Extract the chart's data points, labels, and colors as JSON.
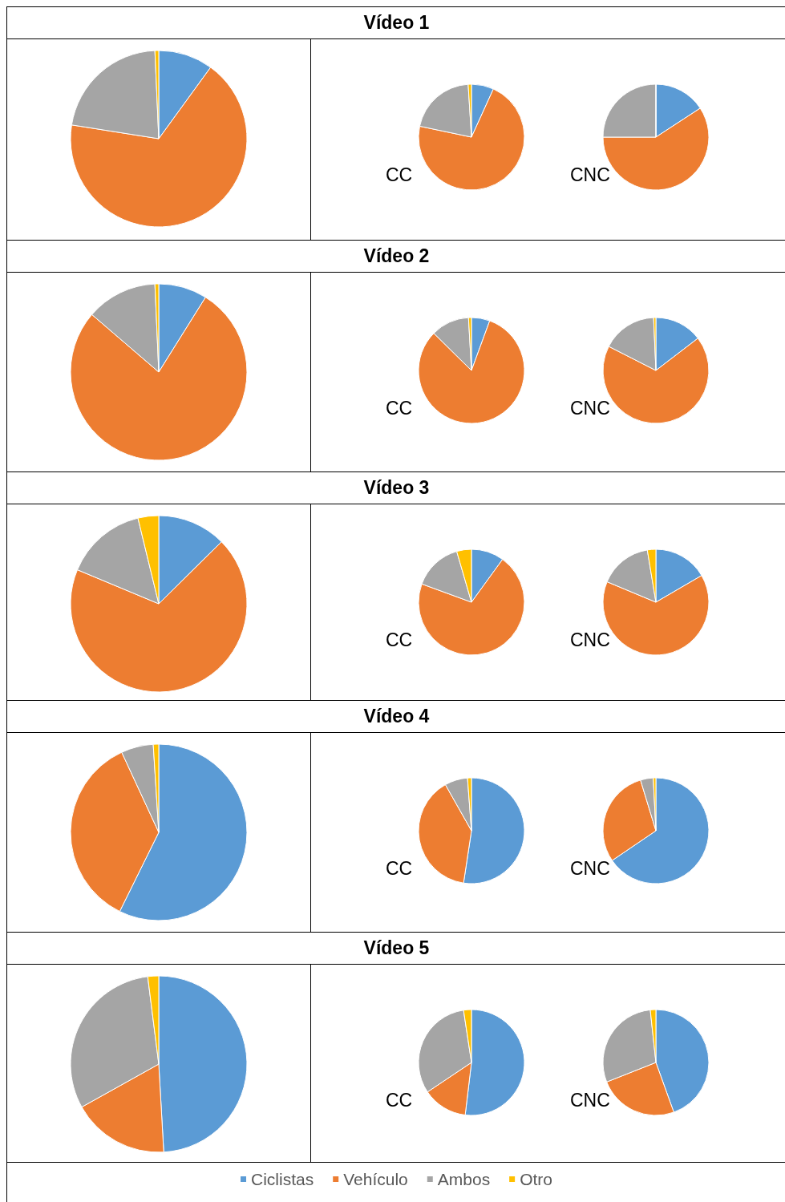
{
  "chart_data": [
    {
      "type": "pie",
      "title": "Vídeo 1",
      "categories": [
        null,
        null,
        null,
        null
      ],
      "values": [
        10,
        67.5,
        21.8,
        0.7
      ],
      "colors": [
        "#5b9bd5",
        "#ed7d31",
        "#a5a5a5",
        "#ffc000"
      ]
    },
    {
      "type": "pie",
      "title": "CC",
      "categories": [
        null,
        null,
        null,
        null
      ],
      "values": [
        6.8,
        71.5,
        20.7,
        1
      ],
      "colors": [
        "#5b9bd5",
        "#ed7d31",
        "#a5a5a5",
        "#ffc000"
      ]
    },
    {
      "type": "pie",
      "title": "CNC",
      "categories": [
        null,
        null,
        null,
        null
      ],
      "values": [
        15.8,
        59.2,
        25,
        0
      ],
      "colors": [
        "#5b9bd5",
        "#ed7d31",
        "#a5a5a5",
        "#ffc000"
      ]
    },
    {
      "type": "pie",
      "title": "Vídeo 2",
      "categories": [
        null,
        null,
        null,
        null
      ],
      "values": [
        8.9,
        77.4,
        13,
        0.7
      ],
      "colors": [
        "#5b9bd5",
        "#ed7d31",
        "#a5a5a5",
        "#ffc000"
      ]
    },
    {
      "type": "pie",
      "title": "CC",
      "categories": [
        null,
        null,
        null,
        null
      ],
      "values": [
        5.6,
        81.8,
        11.7,
        0.9
      ],
      "colors": [
        "#5b9bd5",
        "#ed7d31",
        "#a5a5a5",
        "#ffc000"
      ]
    },
    {
      "type": "pie",
      "title": "CNC",
      "categories": [
        null,
        null,
        null,
        null
      ],
      "values": [
        14.6,
        67.9,
        16.8,
        0.7
      ],
      "colors": [
        "#5b9bd5",
        "#ed7d31",
        "#a5a5a5",
        "#ffc000"
      ]
    },
    {
      "type": "pie",
      "title": "Vídeo 3",
      "categories": [
        null,
        null,
        null,
        null
      ],
      "values": [
        12.6,
        68.7,
        14.9,
        3.8
      ],
      "colors": [
        "#5b9bd5",
        "#ed7d31",
        "#a5a5a5",
        "#ffc000"
      ]
    },
    {
      "type": "pie",
      "title": "CC",
      "categories": [
        null,
        null,
        null,
        null
      ],
      "values": [
        10,
        70.6,
        14.9,
        4.5
      ],
      "colors": [
        "#5b9bd5",
        "#ed7d31",
        "#a5a5a5",
        "#ffc000"
      ]
    },
    {
      "type": "pie",
      "title": "CNC",
      "categories": [
        null,
        null,
        null,
        null
      ],
      "values": [
        16.6,
        64.7,
        16.1,
        2.6
      ],
      "colors": [
        "#5b9bd5",
        "#ed7d31",
        "#a5a5a5",
        "#ffc000"
      ]
    },
    {
      "type": "pie",
      "title": "Vídeo 4",
      "categories": [
        null,
        null,
        null,
        null
      ],
      "values": [
        57.3,
        35.8,
        5.9,
        1
      ],
      "colors": [
        "#5b9bd5",
        "#ed7d31",
        "#a5a5a5",
        "#ffc000"
      ]
    },
    {
      "type": "pie",
      "title": "CC",
      "categories": [
        null,
        null,
        null,
        null
      ],
      "values": [
        52.4,
        39.4,
        7,
        1.2
      ],
      "colors": [
        "#5b9bd5",
        "#ed7d31",
        "#a5a5a5",
        "#ffc000"
      ]
    },
    {
      "type": "pie",
      "title": "CNC",
      "categories": [
        null,
        null,
        null,
        null
      ],
      "values": [
        65.5,
        29.8,
        3.9,
        0.8
      ],
      "colors": [
        "#5b9bd5",
        "#ed7d31",
        "#a5a5a5",
        "#ffc000"
      ]
    },
    {
      "type": "pie",
      "title": "Vídeo 5",
      "categories": [
        null,
        null,
        null,
        null
      ],
      "values": [
        49.1,
        17.8,
        31.1,
        2
      ],
      "colors": [
        "#5b9bd5",
        "#ed7d31",
        "#a5a5a5",
        "#ffc000"
      ]
    },
    {
      "type": "pie",
      "title": "CC",
      "categories": [
        null,
        null,
        null,
        null
      ],
      "values": [
        51.9,
        13.7,
        32,
        2.4
      ],
      "colors": [
        "#5b9bd5",
        "#ed7d31",
        "#a5a5a5",
        "#ffc000"
      ]
    },
    {
      "type": "pie",
      "title": "CNC",
      "categories": [
        "Ciclistas",
        "Vehículo",
        "Ambos",
        "Otro"
      ],
      "values": [
        44.5,
        24.5,
        29.3,
        1.7
      ],
      "colors": [
        "#5b9bd5",
        "#ed7d31",
        "#a5a5a5",
        "#ffc000"
      ],
      "legend": "bottom"
    }
  ]
}
